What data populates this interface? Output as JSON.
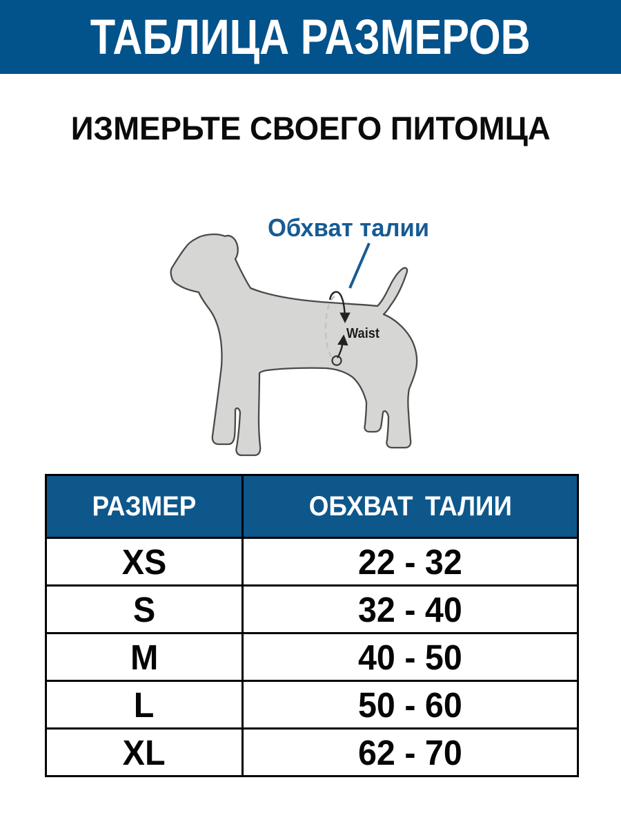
{
  "banner": {
    "title": "ТАБЛИЦА РАЗМЕРОВ",
    "bg_color": "#02528b",
    "text_color": "#ffffff"
  },
  "subtitle": "ИЗМЕРЬТЕ СВОЕГО ПИТОМЦА",
  "diagram": {
    "callout_label": "Обхват талии",
    "waist_label": "Waist",
    "accent_color": "#175b93",
    "dog_fill": "#d6d6d5",
    "dog_outline": "#4a4a48"
  },
  "size_table": {
    "header_bg": "#0e578b",
    "columns": [
      "РАЗМЕР",
      "ОБХВАТ ТАЛИИ"
    ],
    "rows": [
      {
        "size": "XS",
        "waist": "22 - 32"
      },
      {
        "size": "S",
        "waist": "32 - 40"
      },
      {
        "size": "M",
        "waist": "40 - 50"
      },
      {
        "size": "L",
        "waist": "50 - 60"
      },
      {
        "size": "XL",
        "waist": "62 - 70"
      }
    ]
  }
}
